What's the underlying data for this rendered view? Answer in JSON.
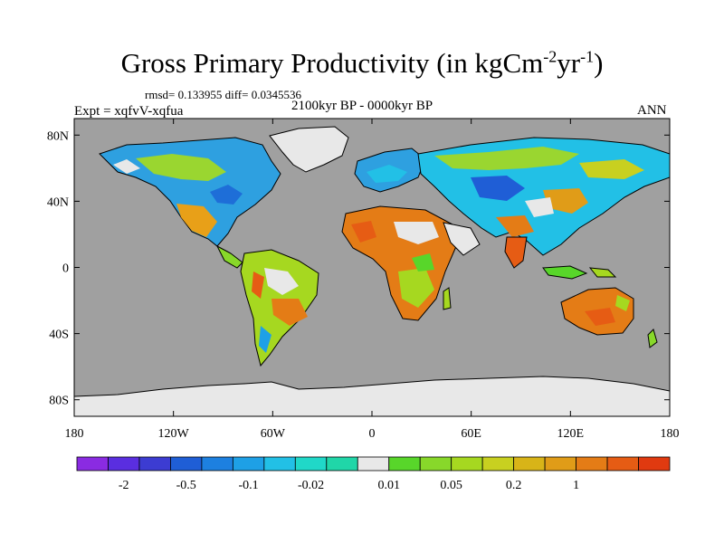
{
  "title": {
    "main": "Gross Primary Productivity (in kgCm",
    "sup1": "-2",
    "mid": "yr",
    "sup2": "-1",
    "end": ")"
  },
  "stats": "rmsd= 0.133955  diff= 0.0345536",
  "experiment": "Expt = xqfvV-xqfua",
  "period": "2100kyr BP - 0000kyr BP",
  "season": "ANN",
  "lat_labels": [
    "80N",
    "40N",
    "0",
    "40S",
    "80S"
  ],
  "lon_labels": [
    "180",
    "120W",
    "60W",
    "0",
    "60E",
    "120E",
    "180"
  ],
  "colorbar": {
    "colors": [
      "#8a2be2",
      "#5a2ee0",
      "#3c3cd2",
      "#1f5ed6",
      "#1d80e0",
      "#1ea0e6",
      "#22c0e6",
      "#20d8c8",
      "#20d6a8",
      "#e8e8e8",
      "#58d62a",
      "#88d82a",
      "#a6d820",
      "#c8d020",
      "#d8b418",
      "#e09c18",
      "#e47c16",
      "#e65c14",
      "#e03a10"
    ],
    "labels": [
      "-2",
      "-0.5",
      "-0.1",
      "-0.02",
      "0.01",
      "0.05",
      "0.2",
      "1"
    ]
  },
  "colors": {
    "ocean": "#a0a0a0",
    "ice": "#e8e8e8",
    "coast": "#000000"
  }
}
